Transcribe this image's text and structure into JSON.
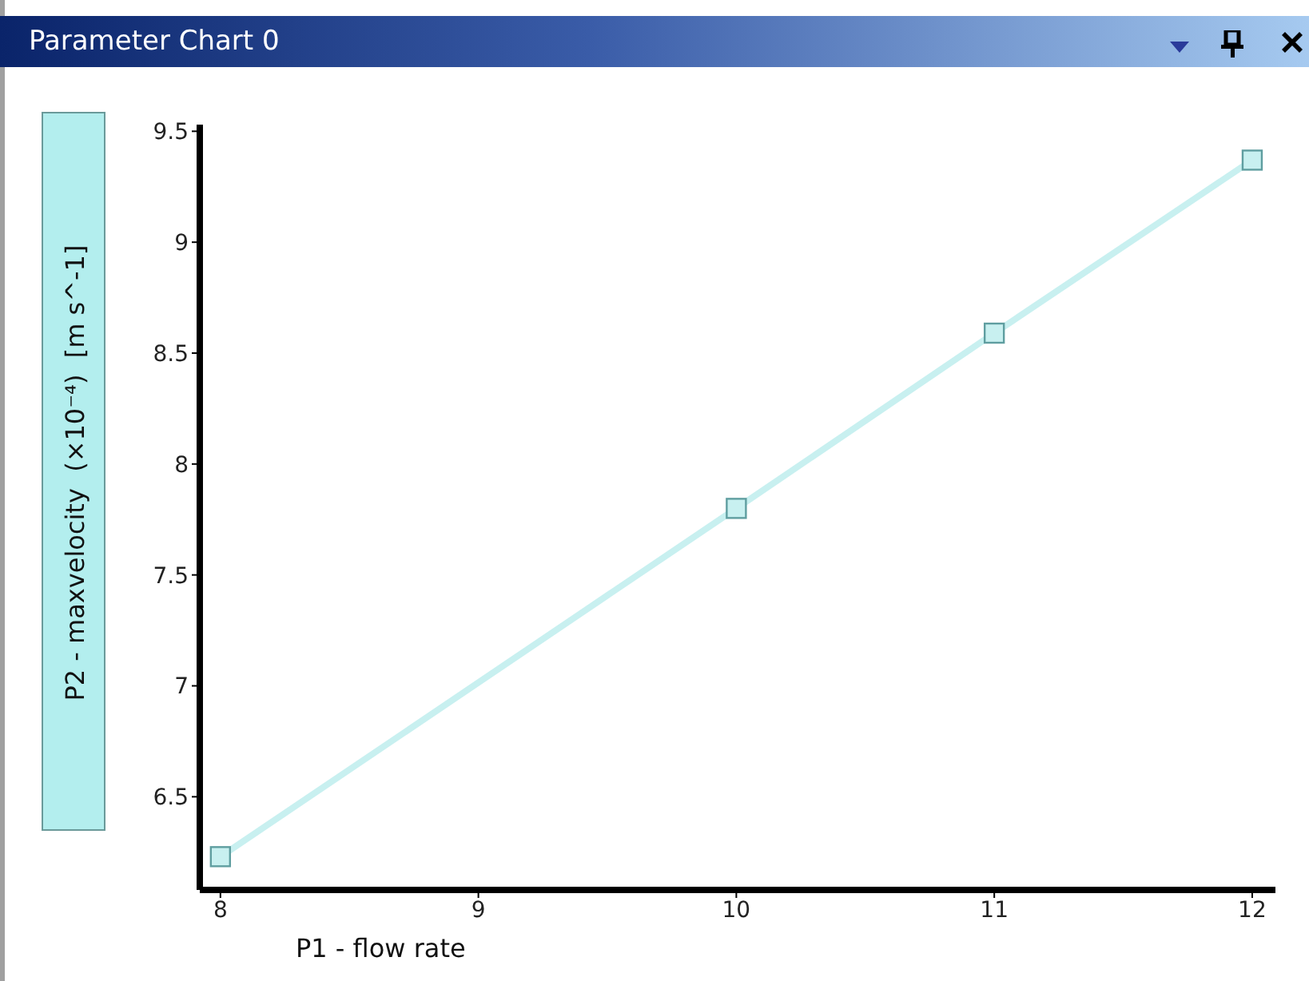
{
  "chart_data": {
    "type": "line",
    "title": "Parameter Chart 0",
    "xlabel": "P1 - flow rate",
    "ylabel": "P2 - maxvelocity  (×10⁻⁴)  [m s^-1]",
    "x": [
      8,
      10,
      11,
      12
    ],
    "series": [
      {
        "color": "#c8f0f0",
        "values": [
          6.23,
          7.8,
          8.59,
          9.37
        ]
      }
    ],
    "xlim": [
      7.92,
      12.09
    ],
    "xticks": [
      8,
      9,
      10,
      11,
      12
    ],
    "ylim": [
      6.08,
      9.53
    ],
    "yticks": [
      6.5,
      7,
      7.5,
      8,
      8.5,
      9,
      9.5
    ],
    "grid": false,
    "legend": false,
    "marker": "square",
    "line_style": "solid"
  }
}
